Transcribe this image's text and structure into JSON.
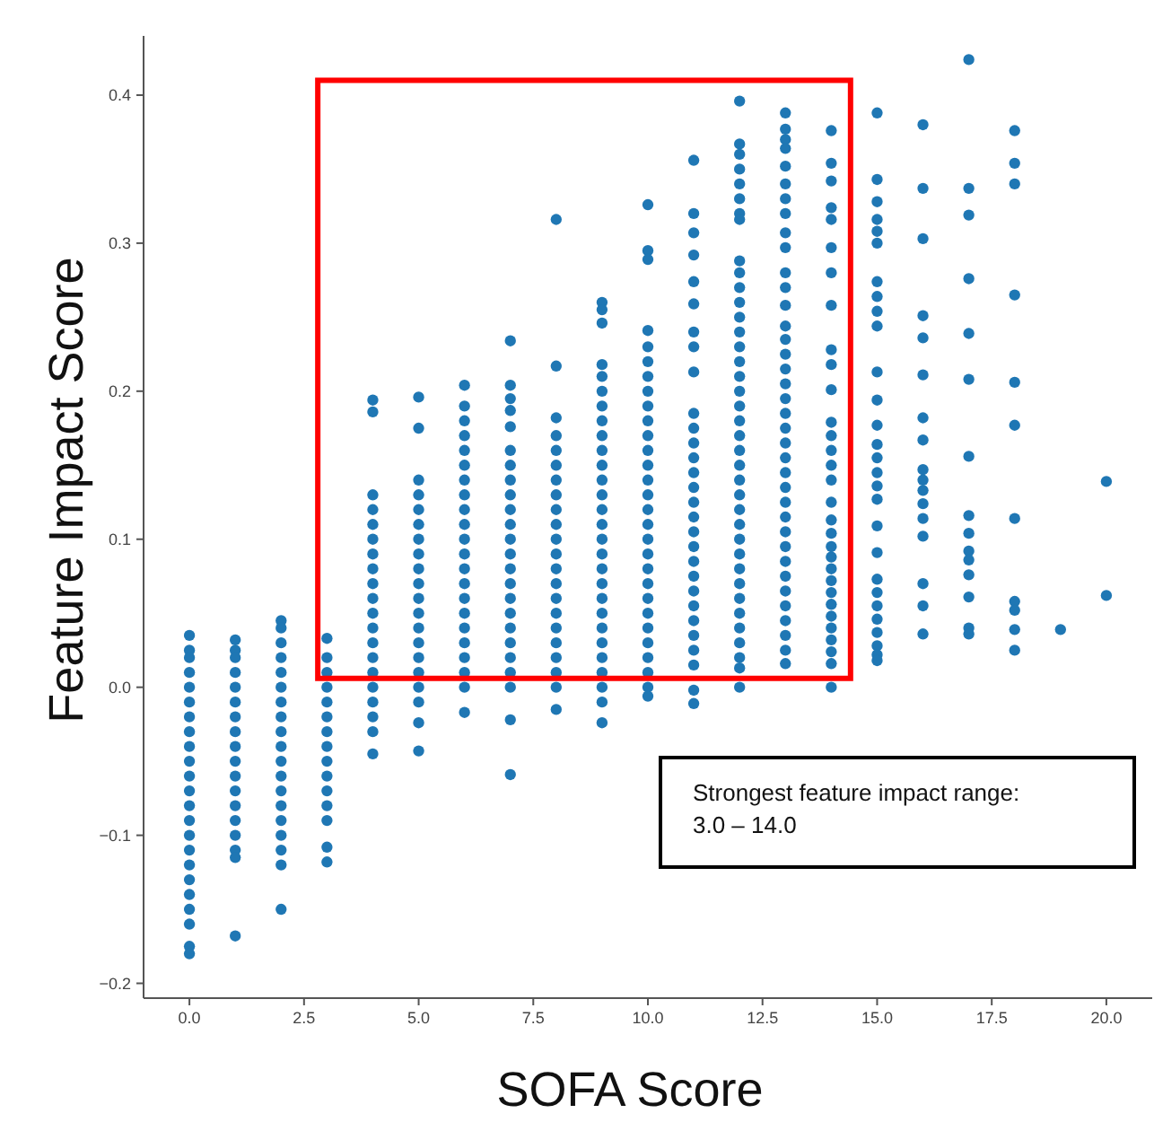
{
  "chart_data": {
    "type": "scatter",
    "xlabel": "SOFA Score",
    "ylabel": "Feature Impact Score",
    "marker": "circle",
    "grid": false,
    "annotations": [
      "Strongest feature impact range:\n3.0 – 14.0"
    ],
    "xlim": [
      -1,
      21
    ],
    "ylim": [
      -0.21,
      0.44
    ],
    "xticks": [
      {
        "value": 0,
        "label": "0.0"
      },
      {
        "value": 2.5,
        "label": "2.5"
      },
      {
        "value": 5,
        "label": "5.0"
      },
      {
        "value": 7.5,
        "label": "7.5"
      },
      {
        "value": 10,
        "label": "10.0"
      },
      {
        "value": 12.5,
        "label": "12.5"
      },
      {
        "value": 15,
        "label": "15.0"
      },
      {
        "value": 17.5,
        "label": "17.5"
      },
      {
        "value": 20,
        "label": "20.0"
      }
    ],
    "yticks": [
      {
        "value": -0.2,
        "label": "−0.2"
      },
      {
        "value": -0.1,
        "label": "−0.1"
      },
      {
        "value": 0,
        "label": "0.0"
      },
      {
        "value": 0.1,
        "label": "0.1"
      },
      {
        "value": 0.2,
        "label": "0.2"
      },
      {
        "value": 0.3,
        "label": "0.3"
      },
      {
        "value": 0.4,
        "label": "0.4"
      }
    ],
    "series": [
      {
        "color": "#1f77b4",
        "x": [
          0,
          0,
          0,
          0,
          0,
          0,
          0,
          0,
          0,
          0,
          0,
          0,
          0,
          0,
          0,
          0,
          0,
          0,
          0,
          0,
          0,
          0,
          0
        ],
        "values": [
          0.035,
          0.025,
          0.02,
          0.01,
          0,
          -0.01,
          -0.02,
          -0.03,
          -0.04,
          -0.05,
          -0.06,
          -0.07,
          -0.08,
          -0.09,
          -0.1,
          -0.11,
          -0.12,
          -0.13,
          -0.14,
          -0.15,
          -0.16,
          -0.175,
          -0.18
        ]
      },
      {
        "color": "#1f77b4",
        "x": [
          1,
          1,
          1,
          1,
          1,
          1,
          1,
          1,
          1,
          1,
          1,
          1,
          1,
          1,
          1,
          1,
          1,
          1
        ],
        "values": [
          0.032,
          0.025,
          0.02,
          0.01,
          0,
          -0.01,
          -0.02,
          -0.03,
          -0.04,
          -0.05,
          -0.06,
          -0.07,
          -0.08,
          -0.09,
          -0.1,
          -0.11,
          -0.115,
          -0.168
        ]
      },
      {
        "color": "#1f77b4",
        "x": [
          2,
          2,
          2,
          2,
          2,
          2,
          2,
          2,
          2,
          2,
          2,
          2,
          2,
          2,
          2,
          2,
          2,
          2,
          2
        ],
        "values": [
          0.045,
          0.04,
          0.03,
          0.02,
          0.01,
          0,
          -0.01,
          -0.02,
          -0.03,
          -0.04,
          -0.05,
          -0.06,
          -0.07,
          -0.08,
          -0.09,
          -0.1,
          -0.11,
          -0.12,
          -0.15
        ]
      },
      {
        "color": "#1f77b4",
        "x": [
          3,
          3,
          3,
          3,
          3,
          3,
          3,
          3,
          3,
          3,
          3,
          3,
          3,
          3,
          3
        ],
        "values": [
          0.033,
          0.02,
          0.01,
          0,
          -0.01,
          -0.02,
          -0.03,
          -0.04,
          -0.05,
          -0.06,
          -0.07,
          -0.08,
          -0.09,
          -0.108,
          -0.118
        ]
      },
      {
        "color": "#1f77b4",
        "x": [
          4,
          4,
          4,
          4,
          4,
          4,
          4,
          4,
          4,
          4,
          4,
          4,
          4,
          4,
          4,
          4,
          4,
          4,
          4,
          4
        ],
        "values": [
          0.194,
          0.186,
          0.13,
          0.12,
          0.11,
          0.1,
          0.09,
          0.08,
          0.07,
          0.06,
          0.05,
          0.04,
          0.03,
          0.02,
          0.01,
          0,
          -0.01,
          -0.02,
          -0.03,
          -0.045
        ]
      },
      {
        "color": "#1f77b4",
        "x": [
          5,
          5,
          5,
          5,
          5,
          5,
          5,
          5,
          5,
          5,
          5,
          5,
          5,
          5,
          5,
          5,
          5,
          5,
          5,
          5
        ],
        "values": [
          0.196,
          0.175,
          0.14,
          0.13,
          0.12,
          0.11,
          0.1,
          0.09,
          0.08,
          0.07,
          0.06,
          0.05,
          0.04,
          0.03,
          0.02,
          0.01,
          0,
          -0.01,
          -0.024,
          -0.043
        ]
      },
      {
        "color": "#1f77b4",
        "x": [
          6,
          6,
          6,
          6,
          6,
          6,
          6,
          6,
          6,
          6,
          6,
          6,
          6,
          6,
          6,
          6,
          6,
          6,
          6,
          6,
          6,
          6
        ],
        "values": [
          0.204,
          0.19,
          0.18,
          0.17,
          0.16,
          0.15,
          0.14,
          0.13,
          0.12,
          0.11,
          0.1,
          0.09,
          0.08,
          0.07,
          0.06,
          0.05,
          0.04,
          0.03,
          0.02,
          0.01,
          0,
          -0.017
        ]
      },
      {
        "color": "#1f77b4",
        "x": [
          7,
          7,
          7,
          7,
          7,
          7,
          7,
          7,
          7,
          7,
          7,
          7,
          7,
          7,
          7,
          7,
          7,
          7,
          7,
          7,
          7,
          7,
          7,
          7
        ],
        "values": [
          0.234,
          0.204,
          0.195,
          0.187,
          0.176,
          0.16,
          0.15,
          0.14,
          0.13,
          0.12,
          0.11,
          0.1,
          0.09,
          0.08,
          0.07,
          0.06,
          0.05,
          0.04,
          0.03,
          0.02,
          0.01,
          0,
          -0.022,
          -0.059
        ]
      },
      {
        "color": "#1f77b4",
        "x": [
          8,
          8,
          8,
          8,
          8,
          8,
          8,
          8,
          8,
          8,
          8,
          8,
          8,
          8,
          8,
          8,
          8,
          8,
          8,
          8,
          8,
          8
        ],
        "values": [
          0.316,
          0.217,
          0.182,
          0.17,
          0.16,
          0.15,
          0.14,
          0.13,
          0.12,
          0.11,
          0.1,
          0.09,
          0.08,
          0.07,
          0.06,
          0.05,
          0.04,
          0.03,
          0.02,
          0.01,
          0,
          -0.015
        ]
      },
      {
        "color": "#1f77b4",
        "x": [
          9,
          9,
          9,
          9,
          9,
          9,
          9,
          9,
          9,
          9,
          9,
          9,
          9,
          9,
          9,
          9,
          9,
          9,
          9,
          9,
          9,
          9,
          9,
          9,
          9,
          9,
          9,
          9
        ],
        "values": [
          0.26,
          0.255,
          0.246,
          0.218,
          0.21,
          0.2,
          0.19,
          0.18,
          0.17,
          0.16,
          0.15,
          0.14,
          0.13,
          0.12,
          0.11,
          0.1,
          0.09,
          0.08,
          0.07,
          0.06,
          0.05,
          0.04,
          0.03,
          0.02,
          0.01,
          0,
          -0.01,
          -0.024
        ]
      },
      {
        "color": "#1f77b4",
        "x": [
          10,
          10,
          10,
          10,
          10,
          10,
          10,
          10,
          10,
          10,
          10,
          10,
          10,
          10,
          10,
          10,
          10,
          10,
          10,
          10,
          10,
          10,
          10,
          10,
          10,
          10,
          10,
          10,
          10
        ],
        "values": [
          0.326,
          0.295,
          0.289,
          0.241,
          0.23,
          0.22,
          0.21,
          0.2,
          0.19,
          0.18,
          0.17,
          0.16,
          0.15,
          0.14,
          0.13,
          0.12,
          0.11,
          0.1,
          0.09,
          0.08,
          0.07,
          0.06,
          0.05,
          0.04,
          0.03,
          0.02,
          0.01,
          0,
          -0.006
        ]
      },
      {
        "color": "#1f77b4",
        "x": [
          11,
          11,
          11,
          11,
          11,
          11,
          11,
          11,
          11,
          11,
          11,
          11,
          11,
          11,
          11,
          11,
          11,
          11,
          11,
          11,
          11,
          11,
          11,
          11,
          11,
          11,
          11,
          11,
          11
        ],
        "values": [
          0.356,
          0.32,
          0.307,
          0.292,
          0.274,
          0.259,
          0.24,
          0.23,
          0.213,
          0.185,
          0.175,
          0.165,
          0.155,
          0.145,
          0.135,
          0.125,
          0.115,
          0.105,
          0.095,
          0.085,
          0.075,
          0.065,
          0.055,
          0.045,
          0.035,
          0.025,
          0.015,
          -0.002,
          -0.011
        ]
      },
      {
        "color": "#1f77b4",
        "x": [
          12,
          12,
          12,
          12,
          12,
          12,
          12,
          12,
          12,
          12,
          12,
          12,
          12,
          12,
          12,
          12,
          12,
          12,
          12,
          12,
          12,
          12,
          12,
          12,
          12,
          12,
          12,
          12,
          12,
          12,
          12,
          12,
          12,
          12,
          12,
          12,
          12,
          12
        ],
        "values": [
          0.396,
          0.367,
          0.36,
          0.35,
          0.34,
          0.33,
          0.32,
          0.316,
          0.288,
          0.28,
          0.27,
          0.26,
          0.25,
          0.24,
          0.23,
          0.22,
          0.21,
          0.2,
          0.19,
          0.18,
          0.17,
          0.16,
          0.15,
          0.14,
          0.13,
          0.12,
          0.11,
          0.1,
          0.09,
          0.08,
          0.07,
          0.06,
          0.05,
          0.04,
          0.03,
          0.02,
          0.013,
          0
        ]
      },
      {
        "color": "#1f77b4",
        "x": [
          13,
          13,
          13,
          13,
          13,
          13,
          13,
          13,
          13,
          13,
          13,
          13,
          13,
          13,
          13,
          13,
          13,
          13,
          13,
          13,
          13,
          13,
          13,
          13,
          13,
          13,
          13,
          13,
          13,
          13,
          13,
          13,
          13,
          13,
          13,
          13,
          13
        ],
        "values": [
          0.388,
          0.377,
          0.37,
          0.364,
          0.352,
          0.34,
          0.33,
          0.32,
          0.307,
          0.297,
          0.28,
          0.27,
          0.258,
          0.244,
          0.235,
          0.225,
          0.215,
          0.205,
          0.195,
          0.185,
          0.175,
          0.165,
          0.155,
          0.145,
          0.135,
          0.125,
          0.115,
          0.105,
          0.095,
          0.085,
          0.075,
          0.065,
          0.055,
          0.045,
          0.035,
          0.025,
          0.016
        ]
      },
      {
        "color": "#1f77b4",
        "x": [
          14,
          14,
          14,
          14,
          14,
          14,
          14,
          14,
          14,
          14,
          14,
          14,
          14,
          14,
          14,
          14,
          14,
          14,
          14,
          14,
          14,
          14,
          14,
          14,
          14,
          14,
          14,
          14,
          14,
          14,
          14
        ],
        "values": [
          0.376,
          0.354,
          0.342,
          0.324,
          0.316,
          0.297,
          0.28,
          0.258,
          0.228,
          0.218,
          0.201,
          0.179,
          0.17,
          0.16,
          0.15,
          0.14,
          0.125,
          0.113,
          0.104,
          0.095,
          0.088,
          0.08,
          0.072,
          0.064,
          0.056,
          0.048,
          0.04,
          0.032,
          0.024,
          0.016,
          0
        ]
      },
      {
        "color": "#1f77b4",
        "x": [
          15,
          15,
          15,
          15,
          15,
          15,
          15,
          15,
          15,
          15,
          15,
          15,
          15,
          15,
          15,
          15,
          15,
          15,
          15,
          15,
          15,
          15,
          15,
          15,
          15,
          15,
          15,
          15
        ],
        "values": [
          0.388,
          0.343,
          0.328,
          0.316,
          0.308,
          0.3,
          0.274,
          0.264,
          0.254,
          0.244,
          0.213,
          0.194,
          0.177,
          0.164,
          0.155,
          0.145,
          0.136,
          0.127,
          0.109,
          0.091,
          0.073,
          0.064,
          0.055,
          0.046,
          0.037,
          0.028,
          0.022,
          0.018
        ]
      },
      {
        "color": "#1f77b4",
        "x": [
          16,
          16,
          16,
          16,
          16,
          16,
          16,
          16,
          16,
          16,
          16,
          16,
          16,
          16,
          16,
          16,
          16
        ],
        "values": [
          0.38,
          0.337,
          0.303,
          0.251,
          0.236,
          0.211,
          0.182,
          0.167,
          0.147,
          0.14,
          0.133,
          0.124,
          0.114,
          0.102,
          0.07,
          0.055,
          0.036
        ]
      },
      {
        "color": "#1f77b4",
        "x": [
          17,
          17,
          17,
          17,
          17,
          17,
          17,
          17,
          17,
          17,
          17,
          17,
          17,
          17,
          17
        ],
        "values": [
          0.424,
          0.337,
          0.319,
          0.276,
          0.239,
          0.208,
          0.156,
          0.116,
          0.104,
          0.092,
          0.086,
          0.076,
          0.061,
          0.04,
          0.036
        ]
      },
      {
        "color": "#1f77b4",
        "x": [
          18,
          18,
          18,
          18,
          18,
          18,
          18,
          18,
          18,
          18,
          18
        ],
        "values": [
          0.376,
          0.354,
          0.34,
          0.265,
          0.206,
          0.177,
          0.114,
          0.058,
          0.052,
          0.039,
          0.025
        ]
      },
      {
        "color": "#1f77b4",
        "x": [
          19
        ],
        "values": [
          0.039
        ]
      },
      {
        "color": "#1f77b4",
        "x": [
          20,
          20
        ],
        "values": [
          0.139,
          0.062
        ]
      }
    ]
  }
}
